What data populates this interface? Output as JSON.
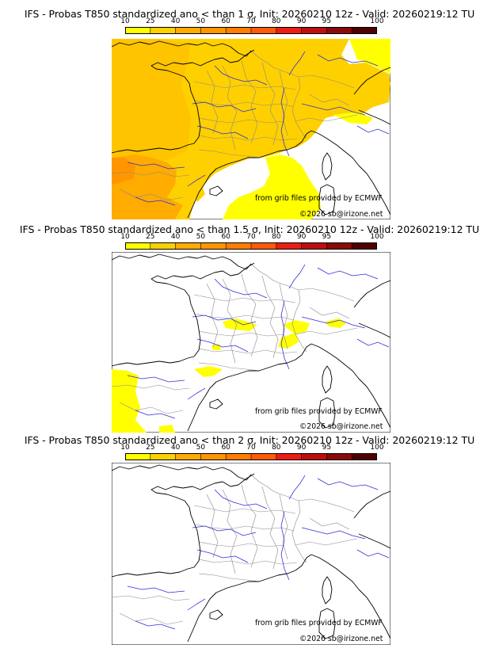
{
  "colorbar": {
    "ticks": [
      "10",
      "25",
      "40",
      "50",
      "60",
      "70",
      "80",
      "90",
      "95",
      "100"
    ],
    "colors": [
      "#ffff00",
      "#ffd000",
      "#ffab00",
      "#ff9600",
      "#ff7d00",
      "#ff5a0a",
      "#ea1e14",
      "#bd0f0f",
      "#8a0a0a",
      "#500000"
    ]
  },
  "panels": [
    {
      "title": "IFS - Probas T850  standardized ano < than 1 σ, Init: 20260210 12z - Valid: 20260219:12 TU",
      "provider_credit": "from grib files provided by ECMWF",
      "copyright": "©2026 sb@irizone.net",
      "probability_coverage": "high"
    },
    {
      "title": "IFS - Probas T850  standardized ano < than 1.5 σ, Init: 20260210 12z - Valid: 20260219:12 TU",
      "provider_credit": "from grib files provided by ECMWF",
      "copyright": "©2026 sb@irizone.net",
      "probability_coverage": "patchy"
    },
    {
      "title": "IFS - Probas T850  standardized ano < than 2 σ, Init: 20260210 12z - Valid: 20260219:12 TU",
      "provider_credit": "from grib files provided by ECMWF",
      "copyright": "©2026 sb@irizone.net",
      "probability_coverage": "none"
    }
  ]
}
